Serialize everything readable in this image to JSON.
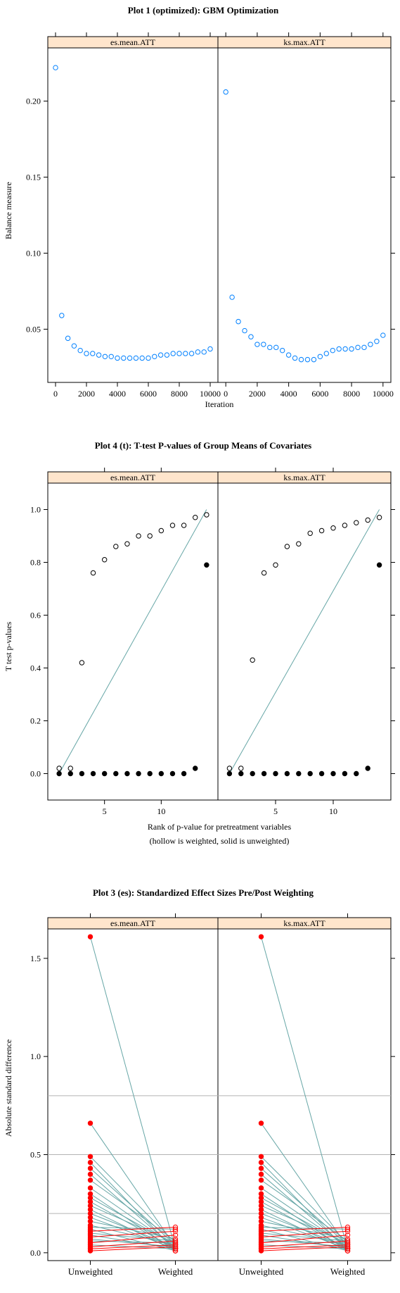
{
  "colors": {
    "strip": "#ffe5cc",
    "hollow_blue": "#0080ff",
    "teal": "#66a6a6",
    "red": "#ff0000",
    "ref_line": "#b3b3b3"
  },
  "chart_data": [
    {
      "type": "scatter",
      "title": "Plot 1 (optimized): GBM Optimization",
      "xlabel": "Iteration",
      "ylabel": "Balance measure",
      "xlim": [
        -500,
        10500
      ],
      "ylim": [
        0.015,
        0.235
      ],
      "xticks": [
        0,
        2000,
        4000,
        6000,
        8000,
        10000
      ],
      "yticks": [
        0.05,
        0.1,
        0.15,
        0.2
      ],
      "ytick_labels": [
        "0.05",
        "0.10",
        "0.15",
        "0.20"
      ],
      "marker": "hollow circle, blue",
      "panels": [
        {
          "name": "es.mean.ATT",
          "x": [
            0,
            400,
            800,
            1200,
            1600,
            2000,
            2400,
            2800,
            3200,
            3600,
            4000,
            4400,
            4800,
            5200,
            5600,
            6000,
            6400,
            6800,
            7200,
            7600,
            8000,
            8400,
            8800,
            9200,
            9600,
            10000
          ],
          "y": [
            0.222,
            0.059,
            0.044,
            0.039,
            0.036,
            0.034,
            0.034,
            0.033,
            0.032,
            0.032,
            0.031,
            0.031,
            0.031,
            0.031,
            0.031,
            0.031,
            0.032,
            0.033,
            0.033,
            0.034,
            0.034,
            0.034,
            0.034,
            0.035,
            0.035,
            0.037
          ]
        },
        {
          "name": "ks.max.ATT",
          "x": [
            0,
            400,
            800,
            1200,
            1600,
            2000,
            2400,
            2800,
            3200,
            3600,
            4000,
            4400,
            4800,
            5200,
            5600,
            6000,
            6400,
            6800,
            7200,
            7600,
            8000,
            8400,
            8800,
            9200,
            9600,
            10000
          ],
          "y": [
            0.206,
            0.071,
            0.055,
            0.049,
            0.045,
            0.04,
            0.04,
            0.038,
            0.038,
            0.036,
            0.033,
            0.031,
            0.03,
            0.03,
            0.03,
            0.032,
            0.034,
            0.036,
            0.037,
            0.037,
            0.037,
            0.038,
            0.038,
            0.04,
            0.042,
            0.046
          ]
        }
      ]
    },
    {
      "type": "scatter",
      "title": "Plot 4 (t): T-test P-values of Group Means of Covariates",
      "xlabel": "Rank of p-value for pretreatment variables",
      "xlabel2": "(hollow is weighted, solid is unweighted)",
      "ylabel": "T test p-values",
      "xlim": [
        0,
        15
      ],
      "ylim": [
        -0.1,
        1.1
      ],
      "xticks": [
        5,
        10
      ],
      "yticks": [
        0.0,
        0.2,
        0.4,
        0.6,
        0.8,
        1.0
      ],
      "ytick_labels": [
        "0.0",
        "0.2",
        "0.4",
        "0.6",
        "0.8",
        "1.0"
      ],
      "reference_line": "diagonal from (1,0) to (14,1)",
      "panels": [
        {
          "name": "es.mean.ATT",
          "x": [
            1,
            2,
            3,
            4,
            5,
            6,
            7,
            8,
            9,
            10,
            11,
            12,
            13,
            14
          ],
          "weighted": [
            0.02,
            0.02,
            0.42,
            0.76,
            0.81,
            0.86,
            0.87,
            0.9,
            0.9,
            0.92,
            0.94,
            0.94,
            0.97,
            0.98
          ],
          "unweighted": [
            0.0,
            0.0,
            0.0,
            0.0,
            0.0,
            0.0,
            0.0,
            0.0,
            0.0,
            0.0,
            0.0,
            0.0,
            0.02,
            0.79
          ]
        },
        {
          "name": "ks.max.ATT",
          "x": [
            1,
            2,
            3,
            4,
            5,
            6,
            7,
            8,
            9,
            10,
            11,
            12,
            13,
            14
          ],
          "weighted": [
            0.02,
            0.02,
            0.43,
            0.76,
            0.79,
            0.86,
            0.87,
            0.91,
            0.92,
            0.93,
            0.94,
            0.95,
            0.96,
            0.97
          ],
          "unweighted": [
            0.0,
            0.0,
            0.0,
            0.0,
            0.0,
            0.0,
            0.0,
            0.0,
            0.0,
            0.0,
            0.0,
            0.0,
            0.02,
            0.79
          ]
        }
      ]
    },
    {
      "type": "line",
      "title": "Plot 3 (es): Standardized Effect Sizes Pre/Post Weighting",
      "ylabel": "Absolute standard difference",
      "categories": [
        "Unweighted",
        "Weighted"
      ],
      "ylim": [
        -0.04,
        1.65
      ],
      "yticks": [
        0.0,
        0.5,
        1.0,
        1.5
      ],
      "ytick_labels": [
        "0.0",
        "0.5",
        "1.0",
        "1.5"
      ],
      "reference_lines": [
        0.2,
        0.5,
        0.8
      ],
      "panels": [
        {
          "name": "es.mean.ATT",
          "pairs": [
            [
              1.61,
              0.02
            ],
            [
              0.66,
              0.03
            ],
            [
              0.49,
              0.05
            ],
            [
              0.46,
              0.01
            ],
            [
              0.43,
              0.04
            ],
            [
              0.4,
              0.02
            ],
            [
              0.37,
              0.06
            ],
            [
              0.33,
              0.03
            ],
            [
              0.3,
              0.01
            ],
            [
              0.28,
              0.04
            ],
            [
              0.26,
              0.02
            ],
            [
              0.24,
              0.05
            ],
            [
              0.22,
              0.01
            ],
            [
              0.2,
              0.03
            ],
            [
              0.18,
              0.02
            ],
            [
              0.16,
              0.07
            ],
            [
              0.14,
              0.04
            ],
            [
              0.13,
              0.12
            ],
            [
              0.12,
              0.01
            ],
            [
              0.11,
              0.13
            ],
            [
              0.1,
              0.06
            ],
            [
              0.09,
              0.02
            ],
            [
              0.08,
              0.11
            ],
            [
              0.07,
              0.03
            ],
            [
              0.06,
              0.05
            ],
            [
              0.05,
              0.09
            ],
            [
              0.04,
              0.02
            ],
            [
              0.03,
              0.06
            ],
            [
              0.02,
              0.04
            ],
            [
              0.01,
              0.03
            ]
          ]
        },
        {
          "name": "ks.max.ATT",
          "pairs": [
            [
              1.61,
              0.02
            ],
            [
              0.66,
              0.03
            ],
            [
              0.49,
              0.05
            ],
            [
              0.46,
              0.01
            ],
            [
              0.43,
              0.04
            ],
            [
              0.4,
              0.02
            ],
            [
              0.37,
              0.06
            ],
            [
              0.33,
              0.03
            ],
            [
              0.3,
              0.01
            ],
            [
              0.28,
              0.04
            ],
            [
              0.26,
              0.02
            ],
            [
              0.24,
              0.05
            ],
            [
              0.22,
              0.01
            ],
            [
              0.2,
              0.03
            ],
            [
              0.18,
              0.02
            ],
            [
              0.16,
              0.07
            ],
            [
              0.14,
              0.04
            ],
            [
              0.13,
              0.12
            ],
            [
              0.12,
              0.01
            ],
            [
              0.11,
              0.13
            ],
            [
              0.1,
              0.06
            ],
            [
              0.09,
              0.02
            ],
            [
              0.08,
              0.11
            ],
            [
              0.07,
              0.03
            ],
            [
              0.06,
              0.05
            ],
            [
              0.05,
              0.09
            ],
            [
              0.04,
              0.02
            ],
            [
              0.03,
              0.06
            ],
            [
              0.02,
              0.04
            ],
            [
              0.01,
              0.03
            ]
          ]
        }
      ]
    }
  ]
}
